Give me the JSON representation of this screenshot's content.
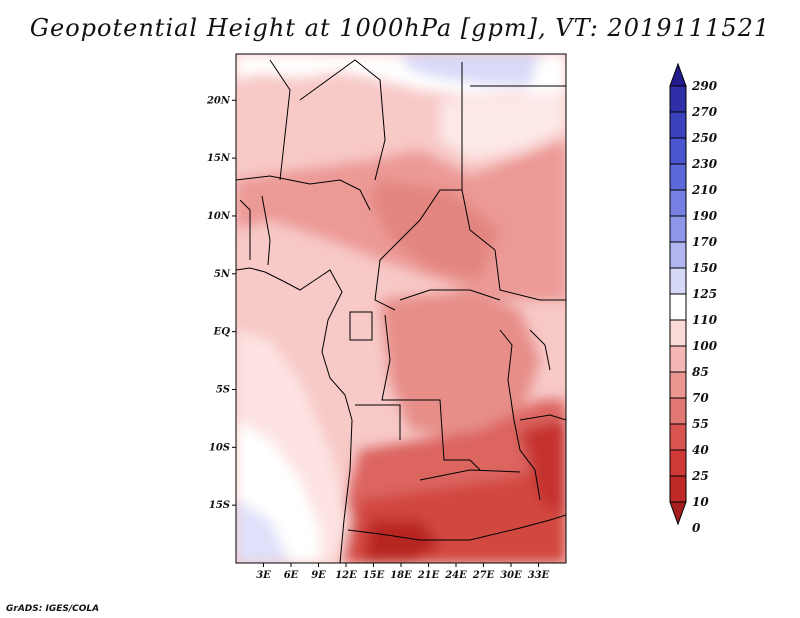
{
  "title": "Geopotential Height at 1000hPa [gpm], VT: 2019111521",
  "credit": "GrADS: IGES/COLA",
  "map": {
    "lon_min": 0,
    "lon_max": 36,
    "lat_min": -20,
    "lat_max": 24,
    "lat_ticks": [
      "20N",
      "15N",
      "10N",
      "5N",
      "EQ",
      "5S",
      "10S",
      "15S"
    ],
    "lat_values": [
      20,
      15,
      10,
      5,
      0,
      -5,
      -10,
      -15
    ],
    "lon_ticks": [
      "3E",
      "6E",
      "9E",
      "12E",
      "15E",
      "18E",
      "21E",
      "24E",
      "27E",
      "30E",
      "33E"
    ],
    "lon_values": [
      3,
      6,
      9,
      12,
      15,
      18,
      21,
      24,
      27,
      30,
      33
    ]
  },
  "colorbar": {
    "levels": [
      "290",
      "270",
      "250",
      "230",
      "210",
      "190",
      "170",
      "150",
      "125",
      "110",
      "100",
      "85",
      "70",
      "55",
      "40",
      "25",
      "10",
      "0"
    ],
    "colors": [
      "#231a8e",
      "#2f2fa8",
      "#3b42be",
      "#4a55cf",
      "#5c6ad9",
      "#7580e2",
      "#8e96ea",
      "#b1b6f1",
      "#d6d8f8",
      "#ffffff",
      "#fbdada",
      "#f5b7b5",
      "#ec9692",
      "#e27873",
      "#d95450",
      "#cf3a36",
      "#bf2a28",
      "#a51d1f"
    ]
  }
}
